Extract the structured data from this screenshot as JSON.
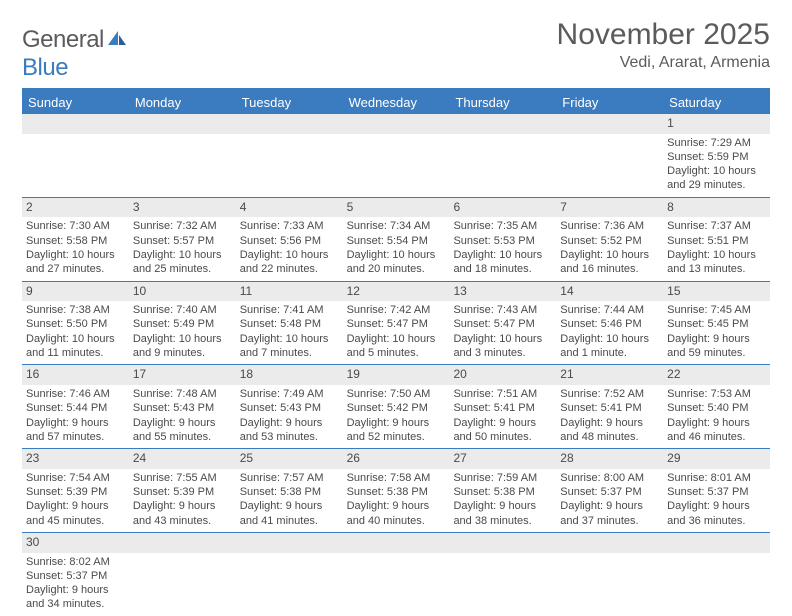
{
  "logo": {
    "text1": "General",
    "text2": "Blue"
  },
  "title": "November 2025",
  "location": "Vedi, Ararat, Armenia",
  "colors": {
    "accent": "#3b7bbf",
    "header_bg": "#3b7bbf",
    "header_text": "#ffffff",
    "daynum_bg": "#ebebeb",
    "text": "#4a4a4a",
    "logo_gray": "#5b5b5b"
  },
  "fonts": {
    "title_size": 30,
    "location_size": 16,
    "header_size": 13,
    "body_size": 11
  },
  "weekdays": [
    "Sunday",
    "Monday",
    "Tuesday",
    "Wednesday",
    "Thursday",
    "Friday",
    "Saturday"
  ],
  "weeks": [
    [
      {
        "empty": true
      },
      {
        "empty": true
      },
      {
        "empty": true
      },
      {
        "empty": true
      },
      {
        "empty": true
      },
      {
        "empty": true
      },
      {
        "num": "1",
        "sunrise": "Sunrise: 7:29 AM",
        "sunset": "Sunset: 5:59 PM",
        "day1": "Daylight: 10 hours",
        "day2": "and 29 minutes."
      }
    ],
    [
      {
        "num": "2",
        "sunrise": "Sunrise: 7:30 AM",
        "sunset": "Sunset: 5:58 PM",
        "day1": "Daylight: 10 hours",
        "day2": "and 27 minutes."
      },
      {
        "num": "3",
        "sunrise": "Sunrise: 7:32 AM",
        "sunset": "Sunset: 5:57 PM",
        "day1": "Daylight: 10 hours",
        "day2": "and 25 minutes."
      },
      {
        "num": "4",
        "sunrise": "Sunrise: 7:33 AM",
        "sunset": "Sunset: 5:56 PM",
        "day1": "Daylight: 10 hours",
        "day2": "and 22 minutes."
      },
      {
        "num": "5",
        "sunrise": "Sunrise: 7:34 AM",
        "sunset": "Sunset: 5:54 PM",
        "day1": "Daylight: 10 hours",
        "day2": "and 20 minutes."
      },
      {
        "num": "6",
        "sunrise": "Sunrise: 7:35 AM",
        "sunset": "Sunset: 5:53 PM",
        "day1": "Daylight: 10 hours",
        "day2": "and 18 minutes."
      },
      {
        "num": "7",
        "sunrise": "Sunrise: 7:36 AM",
        "sunset": "Sunset: 5:52 PM",
        "day1": "Daylight: 10 hours",
        "day2": "and 16 minutes."
      },
      {
        "num": "8",
        "sunrise": "Sunrise: 7:37 AM",
        "sunset": "Sunset: 5:51 PM",
        "day1": "Daylight: 10 hours",
        "day2": "and 13 minutes."
      }
    ],
    [
      {
        "num": "9",
        "sunrise": "Sunrise: 7:38 AM",
        "sunset": "Sunset: 5:50 PM",
        "day1": "Daylight: 10 hours",
        "day2": "and 11 minutes."
      },
      {
        "num": "10",
        "sunrise": "Sunrise: 7:40 AM",
        "sunset": "Sunset: 5:49 PM",
        "day1": "Daylight: 10 hours",
        "day2": "and 9 minutes."
      },
      {
        "num": "11",
        "sunrise": "Sunrise: 7:41 AM",
        "sunset": "Sunset: 5:48 PM",
        "day1": "Daylight: 10 hours",
        "day2": "and 7 minutes."
      },
      {
        "num": "12",
        "sunrise": "Sunrise: 7:42 AM",
        "sunset": "Sunset: 5:47 PM",
        "day1": "Daylight: 10 hours",
        "day2": "and 5 minutes."
      },
      {
        "num": "13",
        "sunrise": "Sunrise: 7:43 AM",
        "sunset": "Sunset: 5:47 PM",
        "day1": "Daylight: 10 hours",
        "day2": "and 3 minutes."
      },
      {
        "num": "14",
        "sunrise": "Sunrise: 7:44 AM",
        "sunset": "Sunset: 5:46 PM",
        "day1": "Daylight: 10 hours",
        "day2": "and 1 minute."
      },
      {
        "num": "15",
        "sunrise": "Sunrise: 7:45 AM",
        "sunset": "Sunset: 5:45 PM",
        "day1": "Daylight: 9 hours",
        "day2": "and 59 minutes."
      }
    ],
    [
      {
        "num": "16",
        "sunrise": "Sunrise: 7:46 AM",
        "sunset": "Sunset: 5:44 PM",
        "day1": "Daylight: 9 hours",
        "day2": "and 57 minutes."
      },
      {
        "num": "17",
        "sunrise": "Sunrise: 7:48 AM",
        "sunset": "Sunset: 5:43 PM",
        "day1": "Daylight: 9 hours",
        "day2": "and 55 minutes."
      },
      {
        "num": "18",
        "sunrise": "Sunrise: 7:49 AM",
        "sunset": "Sunset: 5:43 PM",
        "day1": "Daylight: 9 hours",
        "day2": "and 53 minutes."
      },
      {
        "num": "19",
        "sunrise": "Sunrise: 7:50 AM",
        "sunset": "Sunset: 5:42 PM",
        "day1": "Daylight: 9 hours",
        "day2": "and 52 minutes."
      },
      {
        "num": "20",
        "sunrise": "Sunrise: 7:51 AM",
        "sunset": "Sunset: 5:41 PM",
        "day1": "Daylight: 9 hours",
        "day2": "and 50 minutes."
      },
      {
        "num": "21",
        "sunrise": "Sunrise: 7:52 AM",
        "sunset": "Sunset: 5:41 PM",
        "day1": "Daylight: 9 hours",
        "day2": "and 48 minutes."
      },
      {
        "num": "22",
        "sunrise": "Sunrise: 7:53 AM",
        "sunset": "Sunset: 5:40 PM",
        "day1": "Daylight: 9 hours",
        "day2": "and 46 minutes."
      }
    ],
    [
      {
        "num": "23",
        "sunrise": "Sunrise: 7:54 AM",
        "sunset": "Sunset: 5:39 PM",
        "day1": "Daylight: 9 hours",
        "day2": "and 45 minutes."
      },
      {
        "num": "24",
        "sunrise": "Sunrise: 7:55 AM",
        "sunset": "Sunset: 5:39 PM",
        "day1": "Daylight: 9 hours",
        "day2": "and 43 minutes."
      },
      {
        "num": "25",
        "sunrise": "Sunrise: 7:57 AM",
        "sunset": "Sunset: 5:38 PM",
        "day1": "Daylight: 9 hours",
        "day2": "and 41 minutes."
      },
      {
        "num": "26",
        "sunrise": "Sunrise: 7:58 AM",
        "sunset": "Sunset: 5:38 PM",
        "day1": "Daylight: 9 hours",
        "day2": "and 40 minutes."
      },
      {
        "num": "27",
        "sunrise": "Sunrise: 7:59 AM",
        "sunset": "Sunset: 5:38 PM",
        "day1": "Daylight: 9 hours",
        "day2": "and 38 minutes."
      },
      {
        "num": "28",
        "sunrise": "Sunrise: 8:00 AM",
        "sunset": "Sunset: 5:37 PM",
        "day1": "Daylight: 9 hours",
        "day2": "and 37 minutes."
      },
      {
        "num": "29",
        "sunrise": "Sunrise: 8:01 AM",
        "sunset": "Sunset: 5:37 PM",
        "day1": "Daylight: 9 hours",
        "day2": "and 36 minutes."
      }
    ],
    [
      {
        "num": "30",
        "sunrise": "Sunrise: 8:02 AM",
        "sunset": "Sunset: 5:37 PM",
        "day1": "Daylight: 9 hours",
        "day2": "and 34 minutes."
      },
      {
        "empty": true
      },
      {
        "empty": true
      },
      {
        "empty": true
      },
      {
        "empty": true
      },
      {
        "empty": true
      },
      {
        "empty": true
      }
    ]
  ]
}
